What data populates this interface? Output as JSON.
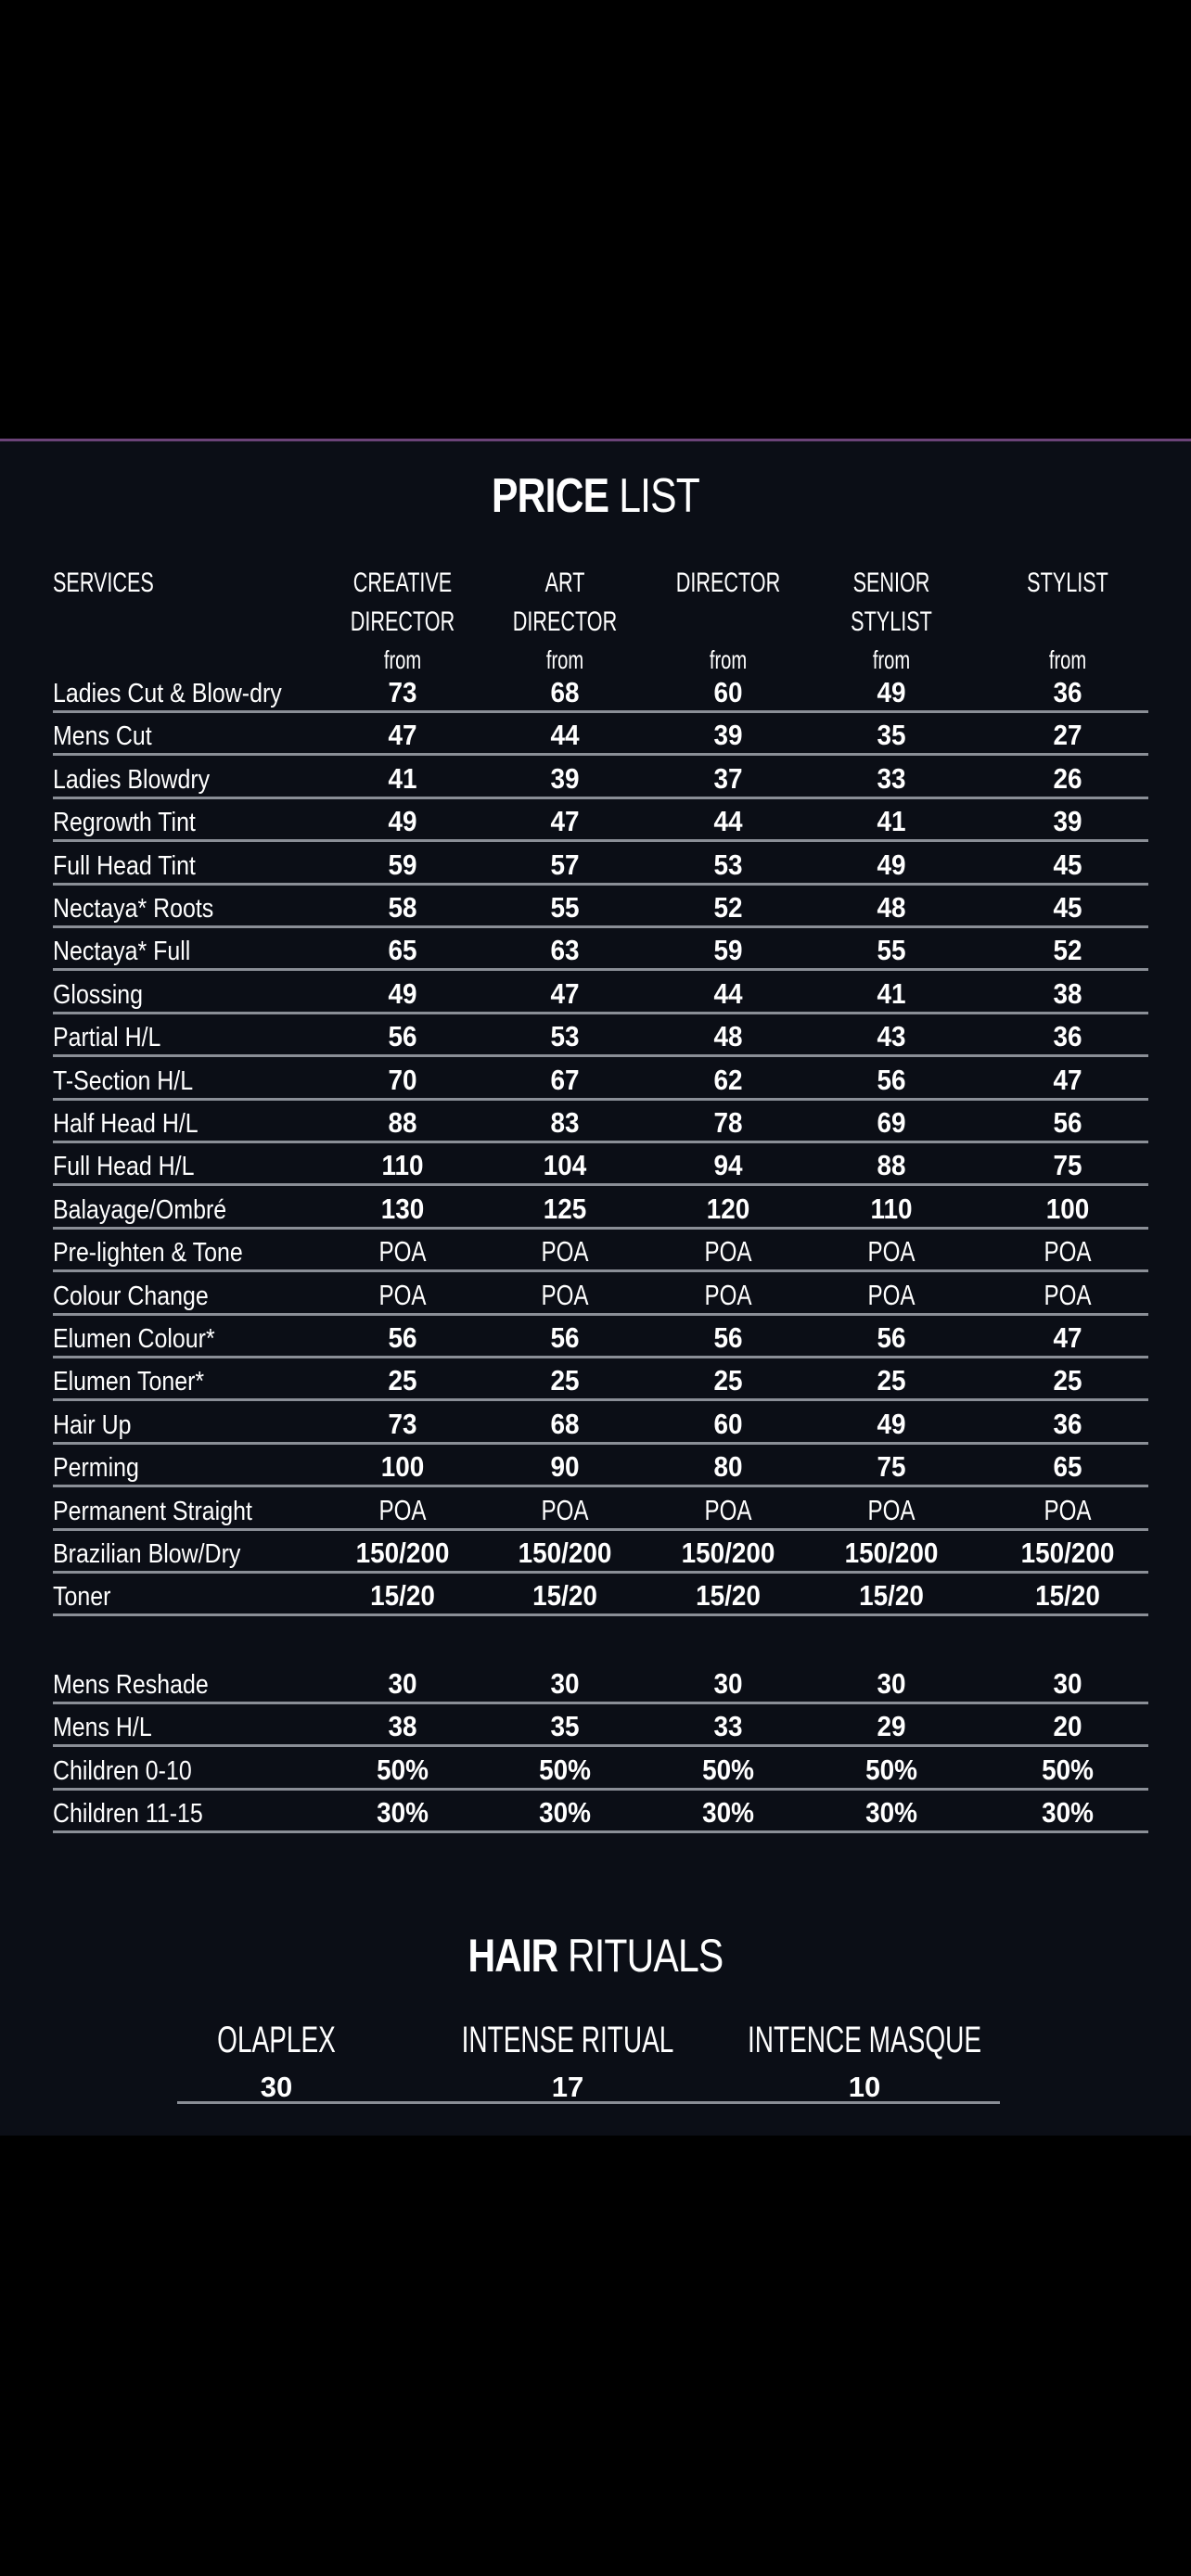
{
  "price_list": {
    "title_bold": "PRICE",
    "title_light": "LIST",
    "services_header": "SERVICES",
    "columns": [
      {
        "line1": "CREATIVE",
        "line2": "DIRECTOR",
        "from": "from"
      },
      {
        "line1": "ART",
        "line2": "DIRECTOR",
        "from": "from"
      },
      {
        "line1": "DIRECTOR",
        "line2": "",
        "from": "from"
      },
      {
        "line1": "SENIOR",
        "line2": "STYLIST",
        "from": "from"
      },
      {
        "line1": "STYLIST",
        "line2": "",
        "from": "from"
      }
    ],
    "rows": [
      {
        "name": "Ladies Cut & Blow-dry",
        "values": [
          "73",
          "68",
          "60",
          "49",
          "36"
        ]
      },
      {
        "name": "Mens Cut",
        "values": [
          "47",
          "44",
          "39",
          "35",
          "27"
        ]
      },
      {
        "name": "Ladies Blowdry",
        "values": [
          "41",
          "39",
          "37",
          "33",
          "26"
        ]
      },
      {
        "name": "Regrowth Tint",
        "values": [
          "49",
          "47",
          "44",
          "41",
          "39"
        ]
      },
      {
        "name": "Full Head Tint",
        "values": [
          "59",
          "57",
          "53",
          "49",
          "45"
        ]
      },
      {
        "name": "Nectaya* Roots",
        "values": [
          "58",
          "55",
          "52",
          "48",
          "45"
        ]
      },
      {
        "name": "Nectaya* Full",
        "values": [
          "65",
          "63",
          "59",
          "55",
          "52"
        ]
      },
      {
        "name": "Glossing",
        "values": [
          "49",
          "47",
          "44",
          "41",
          "38"
        ]
      },
      {
        "name": "Partial H/L",
        "values": [
          "56",
          "53",
          "48",
          "43",
          "36"
        ]
      },
      {
        "name": "T-Section H/L",
        "values": [
          "70",
          "67",
          "62",
          "56",
          "47"
        ]
      },
      {
        "name": "Half Head H/L",
        "values": [
          "88",
          "83",
          "78",
          "69",
          "56"
        ]
      },
      {
        "name": "Full Head H/L",
        "values": [
          "110",
          "104",
          "94",
          "88",
          "75"
        ]
      },
      {
        "name": "Balayage/Ombré",
        "values": [
          "130",
          "125",
          "120",
          "110",
          "100"
        ]
      },
      {
        "name": "Pre-lighten & Tone",
        "values": [
          "POA",
          "POA",
          "POA",
          "POA",
          "POA"
        ]
      },
      {
        "name": "Colour Change",
        "values": [
          "POA",
          "POA",
          "POA",
          "POA",
          "POA"
        ]
      },
      {
        "name": "Elumen Colour*",
        "values": [
          "56",
          "56",
          "56",
          "56",
          "47"
        ]
      },
      {
        "name": "Elumen Toner*",
        "values": [
          "25",
          "25",
          "25",
          "25",
          "25"
        ]
      },
      {
        "name": "Hair Up",
        "values": [
          "73",
          "68",
          "60",
          "49",
          "36"
        ]
      },
      {
        "name": "Perming",
        "values": [
          "100",
          "90",
          "80",
          "75",
          "65"
        ]
      },
      {
        "name": "Permanent Straight",
        "values": [
          "POA",
          "POA",
          "POA",
          "POA",
          "POA"
        ]
      },
      {
        "name": "Brazilian Blow/Dry",
        "values": [
          "150/200",
          "150/200",
          "150/200",
          "150/200",
          "150/200"
        ]
      },
      {
        "name": "Toner",
        "values": [
          "15/20",
          "15/20",
          "15/20",
          "15/20",
          "15/20"
        ]
      }
    ],
    "extra_rows": [
      {
        "name": "Mens Reshade",
        "values": [
          "30",
          "30",
          "30",
          "30",
          "30"
        ]
      },
      {
        "name": "Mens H/L",
        "values": [
          "38",
          "35",
          "33",
          "29",
          "20"
        ]
      },
      {
        "name": "Children 0-10",
        "values": [
          "50%",
          "50%",
          "50%",
          "50%",
          "50%"
        ]
      },
      {
        "name": "Children 11-15",
        "values": [
          "30%",
          "30%",
          "30%",
          "30%",
          "30%"
        ]
      }
    ]
  },
  "hair_rituals": {
    "title_bold": "HAIR",
    "title_light": "RITUALS",
    "items": [
      {
        "name": "OLAPLEX",
        "price": "30"
      },
      {
        "name": "INTENSE RITUAL",
        "price": "17"
      },
      {
        "name": "INTENCE MASQUE",
        "price": "10"
      }
    ]
  },
  "colors": {
    "page_background": "#000000",
    "panel_background": "#0b0e16",
    "accent_line": "#6b4378",
    "rule": "#8a8e96",
    "text": "#ffffff"
  }
}
